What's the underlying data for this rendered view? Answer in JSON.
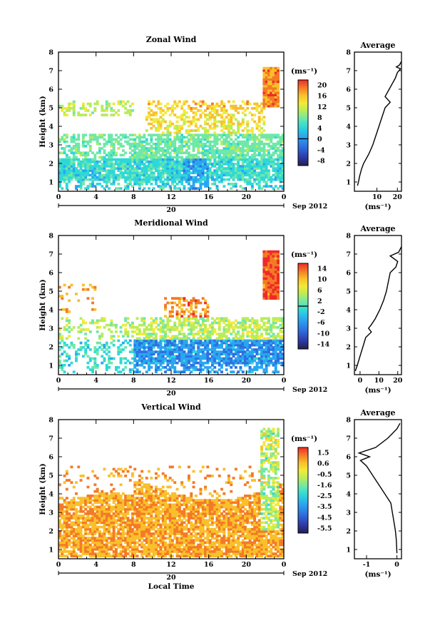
{
  "chart_data": [
    {
      "type": "heatmap",
      "title": "Zonal Wind",
      "xlabel": "",
      "ylabel": "Height (km)",
      "xticks": [
        "0",
        "4",
        "8",
        "12",
        "16",
        "20",
        "0"
      ],
      "xlim": [
        0,
        24
      ],
      "ylim": [
        0.5,
        8
      ],
      "yticks": [
        "1",
        "2",
        "3",
        "4",
        "5",
        "6",
        "7",
        "8"
      ],
      "date_day": "20",
      "date_label": "Sep 2012",
      "colorbar": {
        "unit": "(ms⁻¹)",
        "ticks": [
          "20",
          "16",
          "12",
          "8",
          "4",
          "0",
          "-4",
          "-8"
        ],
        "range": [
          -10,
          22
        ],
        "zero_line": 0
      },
      "average_profile": {
        "title": "Average",
        "xlabel": "(ms⁻¹)",
        "xticks": [
          "10",
          "20"
        ],
        "xlim": [
          -1,
          22
        ],
        "heights": [
          0.8,
          1.0,
          1.3,
          1.7,
          2.0,
          2.5,
          3.0,
          3.5,
          4.0,
          4.5,
          5.0,
          5.3,
          5.6,
          6.0,
          6.3,
          6.6,
          6.9,
          7.1,
          7.2,
          7.3,
          7.5
        ],
        "values": [
          0.5,
          1.0,
          1.5,
          2.5,
          3.5,
          6.0,
          8.0,
          9.5,
          11.0,
          12.5,
          14.0,
          16.5,
          14.0,
          16.0,
          17.5,
          19.0,
          20.0,
          21.5,
          19.5,
          21.0,
          22.0
        ]
      }
    },
    {
      "type": "heatmap",
      "title": "Meridional Wind",
      "xlabel": "",
      "ylabel": "Height (km)",
      "xticks": [
        "0",
        "4",
        "8",
        "12",
        "16",
        "20",
        "0"
      ],
      "xlim": [
        0,
        24
      ],
      "ylim": [
        0.5,
        8
      ],
      "yticks": [
        "1",
        "2",
        "3",
        "4",
        "5",
        "6",
        "7",
        "8"
      ],
      "date_day": "20",
      "date_label": "Sep 2012",
      "colorbar": {
        "unit": "(ms⁻¹)",
        "ticks": [
          "14",
          "10",
          "6",
          "2",
          "-2",
          "-6",
          "-10",
          "-14"
        ],
        "range": [
          -16,
          16
        ],
        "zero_line": 0
      },
      "average_profile": {
        "title": "Average",
        "xlabel": "(ms⁻¹)",
        "xticks": [
          "0",
          "10",
          "20"
        ],
        "xlim": [
          -3,
          22
        ],
        "heights": [
          0.7,
          1.0,
          1.5,
          2.0,
          2.5,
          2.8,
          3.0,
          3.2,
          3.5,
          4.0,
          4.5,
          5.0,
          5.5,
          6.0,
          6.3,
          6.6,
          6.9,
          7.1,
          7.4
        ],
        "values": [
          -2.5,
          -1.5,
          0.0,
          1.5,
          3.0,
          6.0,
          4.5,
          6.0,
          8.0,
          10.5,
          12.5,
          14.0,
          15.0,
          16.0,
          19.0,
          20.0,
          16.0,
          20.5,
          22.0
        ]
      }
    },
    {
      "type": "heatmap",
      "title": "Vertical Wind",
      "xlabel": "Local Time",
      "ylabel": "Height (km)",
      "xticks": [
        "0",
        "4",
        "8",
        "12",
        "16",
        "20",
        "0"
      ],
      "xlim": [
        0,
        24
      ],
      "ylim": [
        0.5,
        8
      ],
      "yticks": [
        "1",
        "2",
        "3",
        "4",
        "5",
        "6",
        "7",
        "8"
      ],
      "date_day": "20",
      "date_label": "Sep 2012",
      "colorbar": {
        "unit": "(ms⁻¹)",
        "ticks": [
          "1.5",
          "0.6",
          "-0.5",
          "-1.6",
          "-2.5",
          "-3.5",
          "-4.5",
          "-5.5"
        ],
        "range": [
          -6,
          2
        ],
        "zero_line": null
      },
      "average_profile": {
        "title": "Average",
        "xlabel": "(ms⁻¹)",
        "xticks": [
          "-1",
          "0"
        ],
        "xlim": [
          -1.4,
          0.15
        ],
        "heights": [
          0.8,
          1.5,
          2.0,
          2.5,
          3.0,
          3.5,
          4.0,
          4.5,
          5.0,
          5.5,
          5.8,
          6.0,
          6.2,
          6.5,
          7.0,
          7.5,
          7.8
        ],
        "values": [
          0.0,
          -0.02,
          -0.05,
          -0.1,
          -0.15,
          -0.2,
          -0.4,
          -0.6,
          -0.8,
          -1.0,
          -1.2,
          -0.9,
          -1.25,
          -0.7,
          -0.3,
          0.0,
          0.1
        ]
      }
    }
  ]
}
